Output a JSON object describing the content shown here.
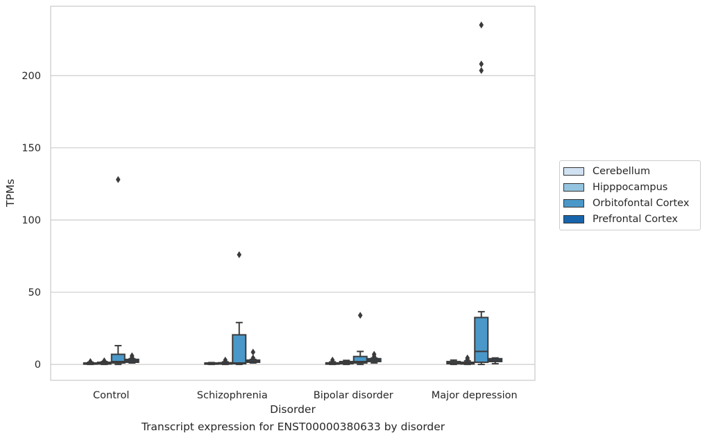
{
  "chart_data": {
    "type": "box",
    "title": "",
    "caption": "Transcript expression for ENST00000380633 by disorder",
    "xlabel": "Disorder",
    "ylabel": "TPMs",
    "ylim": [
      -11,
      248
    ],
    "yticks": [
      0,
      50,
      100,
      150,
      200
    ],
    "grid": "horizontal",
    "legend_position": "right",
    "categories": [
      "Control",
      "Schizophrenia",
      "Bipolar disorder",
      "Major depression"
    ],
    "series": [
      {
        "name": "Cerebellum",
        "color": "#d0e1f2",
        "boxes": [
          {
            "whisker_low": 0,
            "q1": 0.2,
            "median": 0.5,
            "q3": 1.0,
            "whisker_high": 1.5,
            "outliers": [
              2.0
            ]
          },
          {
            "whisker_low": 0,
            "q1": 0.2,
            "median": 0.5,
            "q3": 1.0,
            "whisker_high": 1.3,
            "outliers": []
          },
          {
            "whisker_low": 0,
            "q1": 0.2,
            "median": 0.6,
            "q3": 1.1,
            "whisker_high": 1.8,
            "outliers": [
              3.0
            ]
          },
          {
            "whisker_low": 0,
            "q1": 0.5,
            "median": 1.0,
            "q3": 2.0,
            "whisker_high": 3.0,
            "outliers": []
          }
        ]
      },
      {
        "name": "Hipppocampus",
        "color": "#94c4df",
        "boxes": [
          {
            "whisker_low": 0,
            "q1": 0.3,
            "median": 0.8,
            "q3": 1.5,
            "whisker_high": 2.0,
            "outliers": [
              2.5
            ]
          },
          {
            "whisker_low": 0,
            "q1": 0.3,
            "median": 0.7,
            "q3": 1.2,
            "whisker_high": 1.8,
            "outliers": [
              2.0,
              3.0
            ]
          },
          {
            "whisker_low": 0,
            "q1": 0.5,
            "median": 1.2,
            "q3": 2.0,
            "whisker_high": 2.8,
            "outliers": []
          },
          {
            "whisker_low": 0,
            "q1": 0.3,
            "median": 0.8,
            "q3": 1.5,
            "whisker_high": 2.5,
            "outliers": [
              3.5,
              4.5
            ]
          }
        ]
      },
      {
        "name": "Orbitofontal Cortex",
        "color": "#4a98c9",
        "boxes": [
          {
            "whisker_low": 0,
            "q1": 1.0,
            "median": 2.0,
            "q3": 7.0,
            "whisker_high": 13.0,
            "outliers": [
              128
            ]
          },
          {
            "whisker_low": 0,
            "q1": 0.5,
            "median": 1.0,
            "q3": 20.5,
            "whisker_high": 29.0,
            "outliers": [
              76
            ]
          },
          {
            "whisker_low": 0,
            "q1": 1.0,
            "median": 2.0,
            "q3": 5.5,
            "whisker_high": 9.0,
            "outliers": [
              34
            ]
          },
          {
            "whisker_low": 0,
            "q1": 1.5,
            "median": 9.0,
            "q3": 32.5,
            "whisker_high": 36.5,
            "outliers": [
              203.5,
              208,
              235
            ]
          }
        ]
      },
      {
        "name": "Prefrontal Cortex",
        "color": "#1764ab",
        "boxes": [
          {
            "whisker_low": 1.0,
            "q1": 1.5,
            "median": 2.5,
            "q3": 3.5,
            "whisker_high": 4.0,
            "outliers": [
              5.0,
              6.0
            ]
          },
          {
            "whisker_low": 1.0,
            "q1": 1.5,
            "median": 2.0,
            "q3": 3.0,
            "whisker_high": 3.5,
            "outliers": [
              4.5,
              8.5
            ]
          },
          {
            "whisker_low": 1.0,
            "q1": 2.0,
            "median": 3.0,
            "q3": 4.0,
            "whisker_high": 4.5,
            "outliers": [
              5.5,
              7.0
            ]
          },
          {
            "whisker_low": 0.5,
            "q1": 2.0,
            "median": 3.0,
            "q3": 4.0,
            "whisker_high": 4.5,
            "outliers": []
          }
        ]
      }
    ]
  }
}
